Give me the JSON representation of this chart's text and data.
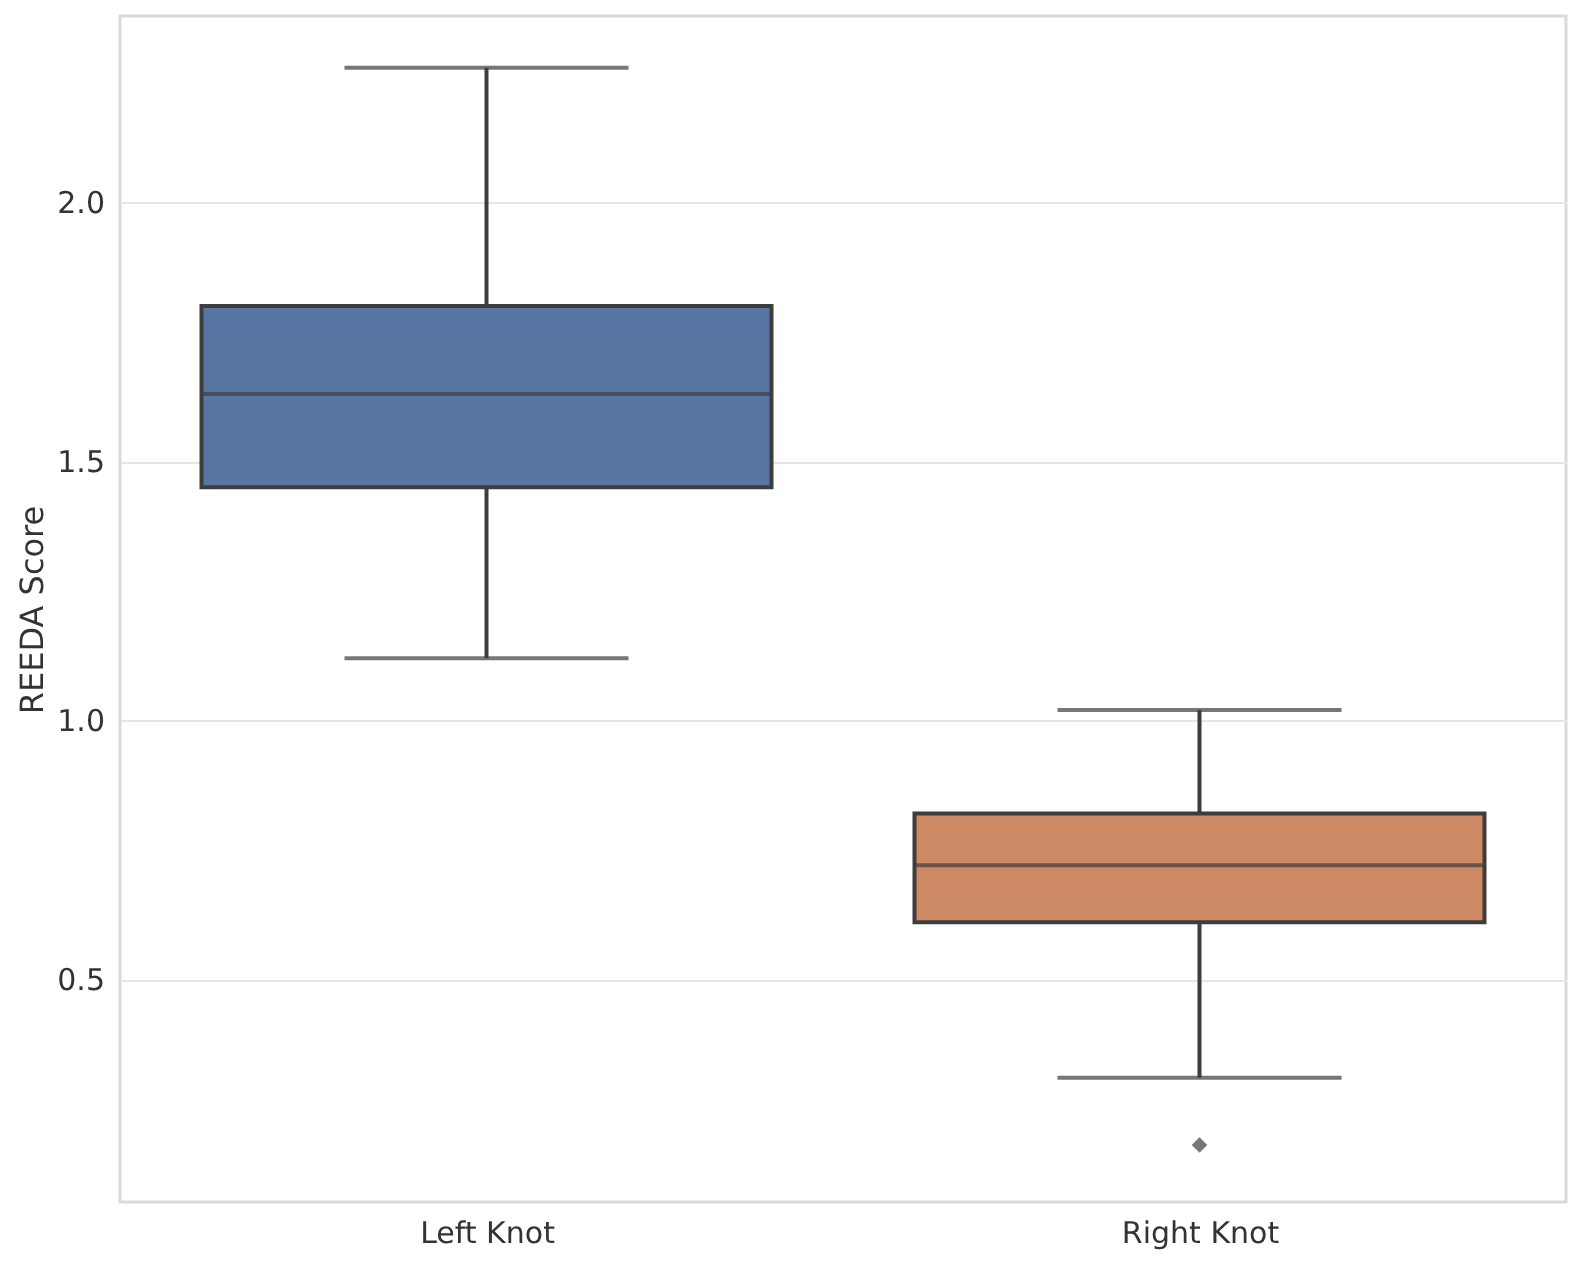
{
  "chart_data": {
    "type": "box",
    "ylabel": "REEDA Score",
    "categories": [
      "Left Knot",
      "Right Knot"
    ],
    "boxes": [
      {
        "low": 1.12,
        "q1": 1.45,
        "median": 1.63,
        "q3": 1.8,
        "high": 2.26
      },
      {
        "low": 0.31,
        "q1": 0.61,
        "median": 0.72,
        "q3": 0.82,
        "high": 1.02,
        "outliers": [
          0.18
        ]
      }
    ],
    "colors": [
      "#5975a4",
      "#cc8963"
    ],
    "ylim": [
      0.07,
      2.36
    ],
    "yticks": [
      0.5,
      {
        "value": 1,
        "label": "1.0"
      },
      1.5,
      {
        "value": 2,
        "label": "2.0"
      }
    ],
    "grid": "y",
    "legend": false,
    "marker": "diamond"
  }
}
